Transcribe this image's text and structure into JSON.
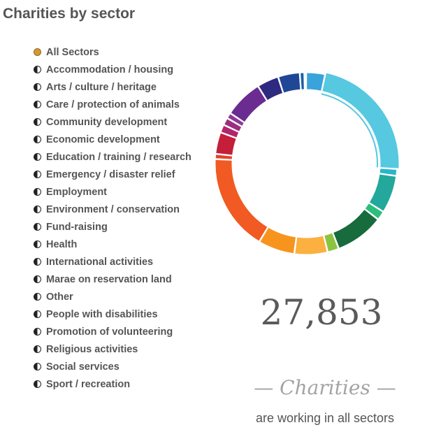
{
  "page": {
    "title": "Charities by sector"
  },
  "sectors": [
    {
      "label": "All Sectors",
      "selected": true
    },
    {
      "label": "Accommodation / housing",
      "selected": false
    },
    {
      "label": "Arts / culture / heritage",
      "selected": false
    },
    {
      "label": "Care / protection of animals",
      "selected": false
    },
    {
      "label": "Community development",
      "selected": false
    },
    {
      "label": "Economic development",
      "selected": false
    },
    {
      "label": "Education / training / research",
      "selected": false
    },
    {
      "label": "Emergency / disaster relief",
      "selected": false
    },
    {
      "label": "Employment",
      "selected": false
    },
    {
      "label": "Environment / conservation",
      "selected": false
    },
    {
      "label": "Fund-raising",
      "selected": false
    },
    {
      "label": "Health",
      "selected": false
    },
    {
      "label": "International activities",
      "selected": false
    },
    {
      "label": "Marae on reservation land",
      "selected": false
    },
    {
      "label": "Other",
      "selected": false
    },
    {
      "label": "People with disabilities",
      "selected": false
    },
    {
      "label": "Promotion of volunteering",
      "selected": false
    },
    {
      "label": "Religious activities",
      "selected": false
    },
    {
      "label": "Social services",
      "selected": false
    },
    {
      "label": "Sport / recreation",
      "selected": false
    }
  ],
  "summary": {
    "count": "27,853",
    "dash": "—",
    "label": "Charities",
    "subtitle": "are working in all sectors"
  },
  "chart_data": {
    "type": "pie",
    "segments": [
      {
        "value": 3.3,
        "color": "#3aa3db"
      },
      {
        "value": 22.2,
        "color": "#56c8e0"
      },
      {
        "value": 1.2,
        "color": "#2ab6c8"
      },
      {
        "value": 6.6,
        "color": "#23a89b"
      },
      {
        "value": 1.6,
        "color": "#2dbd7c"
      },
      {
        "value": 8.5,
        "color": "#176b3c"
      },
      {
        "value": 2.0,
        "color": "#8cc43f"
      },
      {
        "value": 5.8,
        "color": "#fbb040"
      },
      {
        "value": 6.4,
        "color": "#f7941d"
      },
      {
        "value": 16.9,
        "color": "#f15a22"
      },
      {
        "value": 0.9,
        "color": "#e2432b"
      },
      {
        "value": 3.8,
        "color": "#c41e3a"
      },
      {
        "value": 1.4,
        "color": "#b2246b"
      },
      {
        "value": 1.3,
        "color": "#9b2f7d"
      },
      {
        "value": 1.0,
        "color": "#8a3b95"
      },
      {
        "value": 6.7,
        "color": "#6a2c91"
      },
      {
        "value": 3.8,
        "color": "#2e2a7f"
      },
      {
        "value": 3.8,
        "color": "#1f4796"
      },
      {
        "value": 0.8,
        "color": "#1b5fa8"
      },
      {
        "value": 0.3,
        "color": "#2b7bc4"
      }
    ],
    "selected_segment": 1
  }
}
